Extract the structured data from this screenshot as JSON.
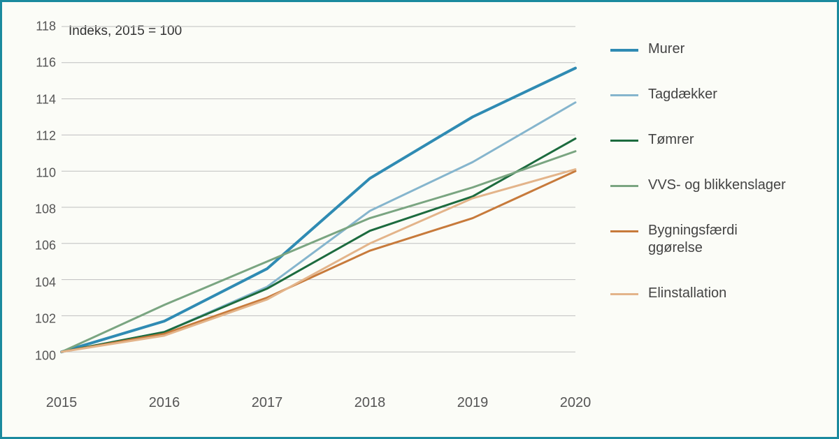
{
  "chart": {
    "type": "line",
    "subtitle": "Indeks, 2015 = 100",
    "background_color": "#fbfcf7",
    "frame_border_color": "#1a8a9e",
    "grid_color": "#bfbfbf",
    "axis_label_color": "#555555",
    "tick_fontsize": 18,
    "x_tick_fontsize": 20,
    "subtitle_fontsize": 19,
    "legend_fontsize": 20,
    "x": {
      "labels": [
        "2015",
        "2016",
        "2017",
        "2018",
        "2019",
        "2020"
      ],
      "min": 2015,
      "max": 2020
    },
    "y": {
      "min": 98,
      "max": 118,
      "ticks": [
        100,
        102,
        104,
        106,
        108,
        110,
        112,
        114,
        116,
        118
      ]
    },
    "series": [
      {
        "name": "Murer",
        "color": "#2f8bb3",
        "line_width": 4,
        "values": [
          100.0,
          101.7,
          104.6,
          109.6,
          113.0,
          115.7
        ]
      },
      {
        "name": "Tagdækker",
        "color": "#85b5cd",
        "line_width": 3,
        "values": [
          100.0,
          101.1,
          103.6,
          107.8,
          110.5,
          113.8
        ]
      },
      {
        "name": "Tømrer",
        "color": "#1c6b3e",
        "line_width": 3,
        "values": [
          100.0,
          101.1,
          103.5,
          106.7,
          108.6,
          111.8
        ]
      },
      {
        "name": "VVS- og blikkenslager",
        "color": "#7aa581",
        "line_width": 3,
        "values": [
          100.0,
          102.6,
          105.0,
          107.4,
          109.1,
          111.1
        ]
      },
      {
        "name": "Bygningsfærdi ggørelse",
        "color": "#c77a3b",
        "line_width": 3,
        "values": [
          100.0,
          101.0,
          103.0,
          105.6,
          107.4,
          110.0
        ]
      },
      {
        "name": "Elinstallation",
        "color": "#e3b48a",
        "line_width": 3,
        "values": [
          100.0,
          100.9,
          102.9,
          106.0,
          108.5,
          110.1
        ]
      }
    ]
  }
}
